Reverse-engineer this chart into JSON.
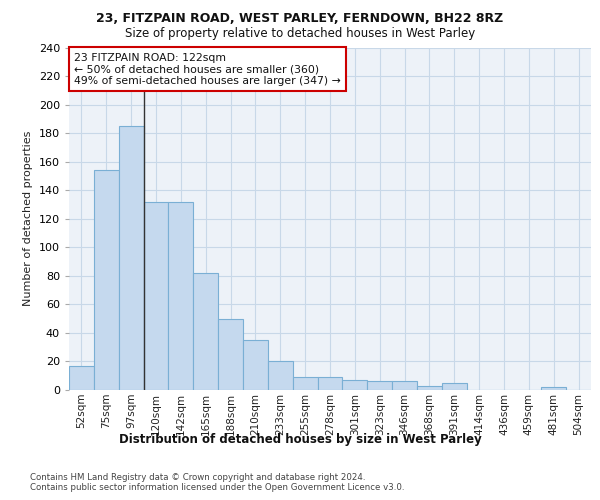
{
  "title1": "23, FITZPAIN ROAD, WEST PARLEY, FERNDOWN, BH22 8RZ",
  "title2": "Size of property relative to detached houses in West Parley",
  "xlabel": "Distribution of detached houses by size in West Parley",
  "ylabel": "Number of detached properties",
  "categories": [
    "52sqm",
    "75sqm",
    "97sqm",
    "120sqm",
    "142sqm",
    "165sqm",
    "188sqm",
    "210sqm",
    "233sqm",
    "255sqm",
    "278sqm",
    "301sqm",
    "323sqm",
    "346sqm",
    "368sqm",
    "391sqm",
    "414sqm",
    "436sqm",
    "459sqm",
    "481sqm",
    "504sqm"
  ],
  "values": [
    17,
    154,
    185,
    132,
    132,
    82,
    50,
    35,
    20,
    9,
    9,
    7,
    6,
    6,
    3,
    5,
    0,
    0,
    0,
    2,
    0
  ],
  "bar_color": "#c5d9ee",
  "bar_edge_color": "#7aafd4",
  "annotation_text": "23 FITZPAIN ROAD: 122sqm\n← 50% of detached houses are smaller (360)\n49% of semi-detached houses are larger (347) →",
  "annotation_box_color": "#ffffff",
  "annotation_box_edge_color": "#cc0000",
  "vline_color": "#333333",
  "grid_color": "#c8d8e8",
  "background_color": "#edf2f8",
  "footer_text": "Contains HM Land Registry data © Crown copyright and database right 2024.\nContains public sector information licensed under the Open Government Licence v3.0.",
  "ylim": [
    0,
    240
  ],
  "yticks": [
    0,
    20,
    40,
    60,
    80,
    100,
    120,
    140,
    160,
    180,
    200,
    220,
    240
  ]
}
